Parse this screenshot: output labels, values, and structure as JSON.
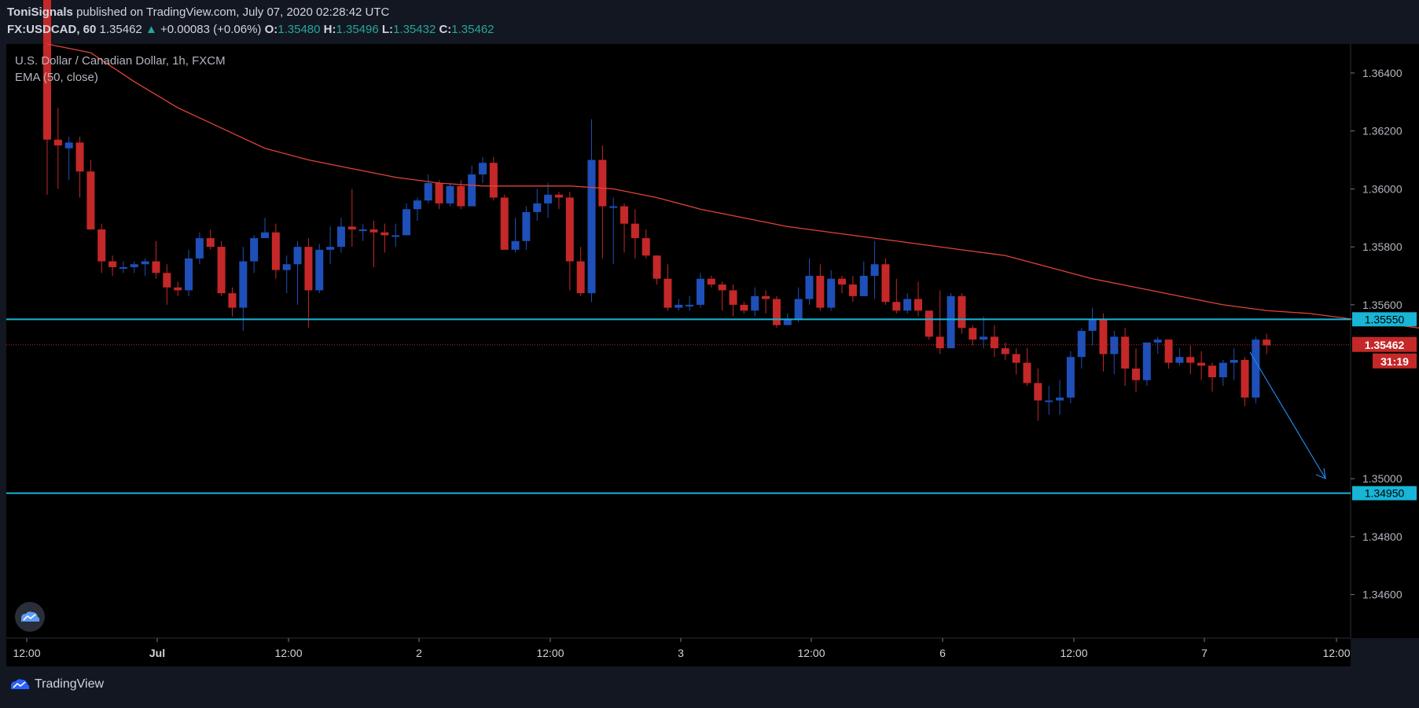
{
  "header": {
    "publisher": "ToniSignals",
    "published_text": "published on TradingView.com, July 07, 2020 02:28:42 UTC",
    "symbol": "FX:USDCAD, 60",
    "last": "1.35462",
    "change_arrow": "▲",
    "change": "+0.00083 (+0.06%)",
    "o_label": "O:",
    "o_value": "1.35480",
    "h_label": "H:",
    "h_value": "1.35496",
    "l_label": "L:",
    "l_value": "1.35432",
    "c_label": "C:",
    "c_value": "1.35462"
  },
  "legend": {
    "instrument": "U.S. Dollar / Canadian Dollar, 1h, FXCM",
    "indicator": "EMA (50, close)"
  },
  "footer": {
    "brand": "TradingView"
  },
  "colors": {
    "background": "#000000",
    "panel": "#131722",
    "bull": "#1f4fb8",
    "bear": "#c42828",
    "ema": "#e0433a",
    "level": "#18b5d6",
    "price_marker": "#c42828"
  },
  "chart_data": {
    "type": "candlestick",
    "title": "U.S. Dollar / Canadian Dollar, 1h, FXCM",
    "ylim": [
      1.3445,
      1.365
    ],
    "y_ticks": [
      "1.36400",
      "1.36200",
      "1.36000",
      "1.35800",
      "1.35600",
      "1.35000",
      "1.34800",
      "1.34600"
    ],
    "x_ticks": [
      "12:00",
      "Jul",
      "12:00",
      "2",
      "12:00",
      "3",
      "12:00",
      "6",
      "12:00",
      "7",
      "12:00"
    ],
    "horizontal_levels": [
      {
        "value": 1.3555,
        "label": "1.35550"
      },
      {
        "value": 1.3495,
        "label": "1.34950"
      }
    ],
    "last_price": {
      "value": 1.35462,
      "label": "1.35462",
      "countdown": "31:19"
    },
    "ema_series": [
      [
        0,
        1.3655
      ],
      [
        4,
        1.3647
      ],
      [
        8,
        1.3637
      ],
      [
        12,
        1.3628
      ],
      [
        16,
        1.3621
      ],
      [
        20,
        1.3614
      ],
      [
        24,
        1.361
      ],
      [
        28,
        1.3607
      ],
      [
        32,
        1.3604
      ],
      [
        36,
        1.3602
      ],
      [
        40,
        1.3601
      ],
      [
        44,
        1.3601
      ],
      [
        48,
        1.3601
      ],
      [
        52,
        1.36
      ],
      [
        56,
        1.3597
      ],
      [
        60,
        1.3593
      ],
      [
        64,
        1.359
      ],
      [
        68,
        1.3587
      ],
      [
        72,
        1.3585
      ],
      [
        76,
        1.3583
      ],
      [
        80,
        1.3581
      ],
      [
        84,
        1.3579
      ],
      [
        88,
        1.3577
      ],
      [
        92,
        1.3573
      ],
      [
        96,
        1.3569
      ],
      [
        100,
        1.3566
      ],
      [
        104,
        1.3563
      ],
      [
        108,
        1.356
      ],
      [
        112,
        1.3558
      ],
      [
        116,
        1.3557
      ],
      [
        120,
        1.3555
      ],
      [
        124,
        1.3553
      ],
      [
        128,
        1.3551
      ],
      [
        130,
        1.355
      ]
    ],
    "candles": [
      [
        1.368,
        1.3617,
        1.365,
        1.3598
      ],
      [
        1.3617,
        1.3615,
        1.3628,
        1.36
      ],
      [
        1.3614,
        1.3616,
        1.3618,
        1.3603
      ],
      [
        1.3616,
        1.3606,
        1.3618,
        1.3597
      ],
      [
        1.3606,
        1.3586,
        1.361,
        1.3586
      ],
      [
        1.3586,
        1.3575,
        1.3588,
        1.3571
      ],
      [
        1.3575,
        1.3573,
        1.3577,
        1.357
      ],
      [
        1.3573,
        1.3573,
        1.3575,
        1.3571
      ],
      [
        1.3573,
        1.3574,
        1.3575,
        1.3571
      ],
      [
        1.3574,
        1.3575,
        1.3576,
        1.357
      ],
      [
        1.3575,
        1.3571,
        1.3582,
        1.3569
      ],
      [
        1.3571,
        1.3566,
        1.3574,
        1.356
      ],
      [
        1.3566,
        1.3565,
        1.3568,
        1.3563
      ],
      [
        1.3565,
        1.3576,
        1.3579,
        1.3563
      ],
      [
        1.3576,
        1.3583,
        1.3585,
        1.3574
      ],
      [
        1.3583,
        1.358,
        1.3586,
        1.3579
      ],
      [
        1.358,
        1.3564,
        1.3582,
        1.3563
      ],
      [
        1.3564,
        1.3559,
        1.3566,
        1.3556
      ],
      [
        1.3559,
        1.3575,
        1.358,
        1.3551
      ],
      [
        1.3575,
        1.3583,
        1.3584,
        1.3571
      ],
      [
        1.3583,
        1.3585,
        1.359,
        1.3583
      ],
      [
        1.3585,
        1.3572,
        1.3588,
        1.3569
      ],
      [
        1.3572,
        1.3574,
        1.3577,
        1.3564
      ],
      [
        1.3574,
        1.358,
        1.3582,
        1.356
      ],
      [
        1.358,
        1.3565,
        1.3583,
        1.3552
      ],
      [
        1.3565,
        1.3579,
        1.3581,
        1.3564
      ],
      [
        1.3579,
        1.358,
        1.3587,
        1.3574
      ],
      [
        1.358,
        1.3587,
        1.359,
        1.3578
      ],
      [
        1.3587,
        1.3586,
        1.36,
        1.358
      ],
      [
        1.3586,
        1.3586,
        1.3588,
        1.3582
      ],
      [
        1.3586,
        1.3585,
        1.3589,
        1.3573
      ],
      [
        1.3585,
        1.3584,
        1.3588,
        1.3578
      ],
      [
        1.3584,
        1.3584,
        1.3588,
        1.358
      ],
      [
        1.3584,
        1.3593,
        1.3595,
        1.3584
      ],
      [
        1.3593,
        1.3596,
        1.3597,
        1.3589
      ],
      [
        1.3596,
        1.3602,
        1.3605,
        1.3595
      ],
      [
        1.3602,
        1.3595,
        1.3603,
        1.3593
      ],
      [
        1.3595,
        1.3601,
        1.3602,
        1.3594
      ],
      [
        1.3601,
        1.3594,
        1.3603,
        1.3593
      ],
      [
        1.3594,
        1.3605,
        1.3608,
        1.3594
      ],
      [
        1.3605,
        1.3609,
        1.3611,
        1.3602
      ],
      [
        1.3609,
        1.3597,
        1.3611,
        1.3596
      ],
      [
        1.3597,
        1.3579,
        1.3598,
        1.3579
      ],
      [
        1.3579,
        1.3582,
        1.359,
        1.3578
      ],
      [
        1.3582,
        1.3592,
        1.3594,
        1.3579
      ],
      [
        1.3592,
        1.3595,
        1.36,
        1.3589
      ],
      [
        1.3595,
        1.3598,
        1.3602,
        1.359
      ],
      [
        1.3598,
        1.3597,
        1.3599,
        1.3593
      ],
      [
        1.3597,
        1.3575,
        1.3599,
        1.3565
      ],
      [
        1.3575,
        1.3564,
        1.358,
        1.3563
      ],
      [
        1.3564,
        1.361,
        1.3624,
        1.3561
      ],
      [
        1.361,
        1.3594,
        1.3615,
        1.3576
      ],
      [
        1.3594,
        1.3594,
        1.3597,
        1.3574
      ],
      [
        1.3594,
        1.3588,
        1.3595,
        1.3578
      ],
      [
        1.3588,
        1.3583,
        1.3593,
        1.3576
      ],
      [
        1.3583,
        1.3577,
        1.3586,
        1.3576
      ],
      [
        1.3577,
        1.3569,
        1.3577,
        1.3567
      ],
      [
        1.3569,
        1.3559,
        1.3574,
        1.3558
      ],
      [
        1.3559,
        1.356,
        1.3562,
        1.3558
      ],
      [
        1.356,
        1.356,
        1.3563,
        1.3558
      ],
      [
        1.356,
        1.3569,
        1.3571,
        1.3559
      ],
      [
        1.3569,
        1.3567,
        1.357,
        1.3566
      ],
      [
        1.3567,
        1.3565,
        1.3568,
        1.3558
      ],
      [
        1.3565,
        1.356,
        1.3567,
        1.3556
      ],
      [
        1.356,
        1.3558,
        1.3561,
        1.3557
      ],
      [
        1.3558,
        1.3563,
        1.3566,
        1.3556
      ],
      [
        1.3563,
        1.3562,
        1.3565,
        1.3557
      ],
      [
        1.3562,
        1.3553,
        1.3563,
        1.3552
      ],
      [
        1.3553,
        1.3555,
        1.3557,
        1.3553
      ],
      [
        1.3555,
        1.3562,
        1.3566,
        1.3554
      ],
      [
        1.3562,
        1.357,
        1.3576,
        1.356
      ],
      [
        1.357,
        1.3559,
        1.3574,
        1.3558
      ],
      [
        1.3559,
        1.3569,
        1.3572,
        1.3558
      ],
      [
        1.3569,
        1.3567,
        1.357,
        1.3564
      ],
      [
        1.3567,
        1.3563,
        1.357,
        1.3561
      ],
      [
        1.3563,
        1.357,
        1.3575,
        1.3563
      ],
      [
        1.357,
        1.3574,
        1.3582,
        1.3562
      ],
      [
        1.3574,
        1.3561,
        1.3576,
        1.356
      ],
      [
        1.3561,
        1.3558,
        1.3569,
        1.3557
      ],
      [
        1.3558,
        1.3562,
        1.3564,
        1.3557
      ],
      [
        1.3562,
        1.3558,
        1.3568,
        1.3556
      ],
      [
        1.3558,
        1.3549,
        1.3558,
        1.3548
      ],
      [
        1.3549,
        1.3545,
        1.3565,
        1.3543
      ],
      [
        1.3545,
        1.3563,
        1.3564,
        1.3546
      ],
      [
        1.3563,
        1.3552,
        1.3564,
        1.355
      ],
      [
        1.3552,
        1.3548,
        1.3553,
        1.3546
      ],
      [
        1.3548,
        1.3549,
        1.3556,
        1.3545
      ],
      [
        1.3549,
        1.3545,
        1.3553,
        1.3542
      ],
      [
        1.3545,
        1.3543,
        1.3547,
        1.3541
      ],
      [
        1.3543,
        1.354,
        1.3545,
        1.3536
      ],
      [
        1.354,
        1.3533,
        1.3545,
        1.3532
      ],
      [
        1.3533,
        1.3527,
        1.3538,
        1.352
      ],
      [
        1.3527,
        1.3527,
        1.3532,
        1.3522
      ],
      [
        1.3527,
        1.3528,
        1.3534,
        1.3522
      ],
      [
        1.3528,
        1.3542,
        1.3544,
        1.3526
      ],
      [
        1.3542,
        1.3551,
        1.3552,
        1.3538
      ],
      [
        1.3551,
        1.3555,
        1.3559,
        1.3546
      ],
      [
        1.3555,
        1.3543,
        1.3557,
        1.3537
      ],
      [
        1.3543,
        1.3549,
        1.3551,
        1.3536
      ],
      [
        1.3549,
        1.3538,
        1.3552,
        1.3532
      ],
      [
        1.3538,
        1.3534,
        1.3545,
        1.353
      ],
      [
        1.3534,
        1.3547,
        1.3547,
        1.3532
      ],
      [
        1.3547,
        1.3548,
        1.3549,
        1.3543
      ],
      [
        1.3548,
        1.354,
        1.3548,
        1.3538
      ],
      [
        1.354,
        1.3542,
        1.3545,
        1.3539
      ],
      [
        1.3542,
        1.354,
        1.3546,
        1.3536
      ],
      [
        1.354,
        1.3539,
        1.3544,
        1.3534
      ],
      [
        1.3539,
        1.3535,
        1.354,
        1.353
      ],
      [
        1.3535,
        1.354,
        1.3541,
        1.3532
      ],
      [
        1.354,
        1.3541,
        1.3545,
        1.3534
      ],
      [
        1.3541,
        1.3528,
        1.3542,
        1.3525
      ],
      [
        1.3528,
        1.3548,
        1.3549,
        1.3526
      ],
      [
        1.3548,
        1.3546,
        1.355,
        1.3543
      ]
    ]
  }
}
